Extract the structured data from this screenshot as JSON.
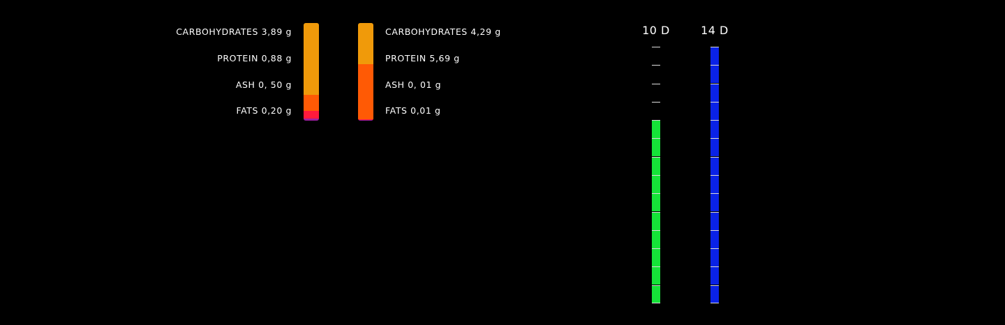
{
  "nutrition": {
    "left": {
      "labels": [
        "CARBOHYDRATES 3,89 g",
        "PROTEIN 0,88 g",
        "ASH 0, 50 g",
        "FATS 0,20 g"
      ],
      "colors": [
        "#F09A0A",
        "#FF5A05",
        "#FF1A3C",
        "#9B1FA0"
      ],
      "segments": [
        0.738,
        0.167,
        0.075,
        0.02
      ]
    },
    "right": {
      "labels": [
        "CARBOHYDRATES 4,29 g",
        "PROTEIN 5,69 g",
        "ASH 0, 01 g",
        "FATS 0,01 g"
      ],
      "colors": [
        "#F09A0A",
        "#FF5A05",
        "#FF1A3C",
        "#9B1FA0"
      ],
      "segments": [
        0.42,
        0.565,
        0.005,
        0.01
      ]
    }
  },
  "days": [
    {
      "label": "10 D",
      "total": 14,
      "filled": 10,
      "color": "#15E338"
    },
    {
      "label": "14 D",
      "total": 14,
      "filled": 14,
      "color": "#0A22E6"
    }
  ]
}
